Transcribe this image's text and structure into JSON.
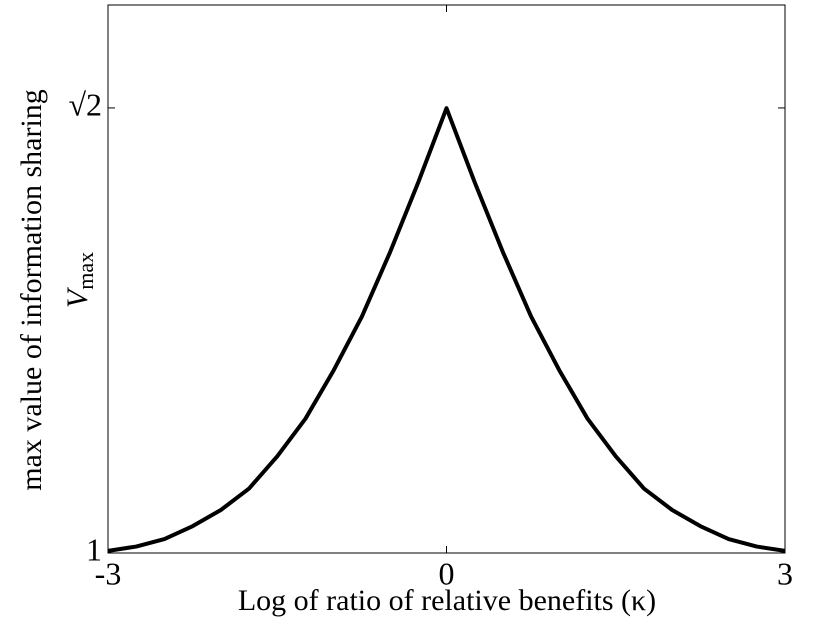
{
  "chart_data": {
    "type": "line",
    "xlabel": "Log of ratio of relative benefits (κ)",
    "ylabel": "max value of information sharing",
    "ylabel_symbol": {
      "base": "V",
      "sub": "max"
    },
    "x": [
      -3,
      -2.75,
      -2.5,
      -2.25,
      -2,
      -1.75,
      -1.5,
      -1.25,
      -1,
      -0.75,
      -0.5,
      -0.25,
      0,
      0.25,
      0.5,
      0.75,
      1,
      1.25,
      1.5,
      1.75,
      2,
      2.25,
      2.5,
      2.75,
      3
    ],
    "series": [
      {
        "color": "#000000",
        "values": [
          1.002,
          1.006,
          1.013,
          1.025,
          1.04,
          1.06,
          1.09,
          1.125,
          1.17,
          1.22,
          1.28,
          1.345,
          1.414,
          1.345,
          1.28,
          1.22,
          1.17,
          1.125,
          1.09,
          1.06,
          1.04,
          1.025,
          1.013,
          1.006,
          1.002
        ]
      }
    ],
    "xlim": [
      -3,
      3
    ],
    "ylim": [
      1,
      1.51
    ],
    "xticks": [
      -3,
      0,
      3
    ],
    "yticks": [
      1,
      {
        "value": 1.4142,
        "label": "√2"
      }
    ],
    "grid": false
  }
}
